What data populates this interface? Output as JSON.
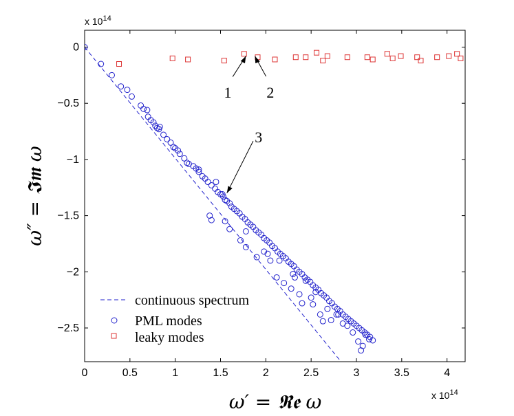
{
  "chart_data": {
    "type": "scatter",
    "title": "",
    "xlabel": "ω′ = 𝕽𝖊 ω",
    "ylabel": "ω″ = 𝕴𝖒 ω",
    "x_multiplier_label": "x 10",
    "x_multiplier_exp": "14",
    "y_multiplier_label": "x 10",
    "y_multiplier_exp": "14",
    "xlim": [
      0,
      4.2
    ],
    "ylim": [
      -2.8,
      0.15
    ],
    "xticks": [
      0,
      0.5,
      1,
      1.5,
      2,
      2.5,
      3,
      3.5,
      4
    ],
    "xtick_labels": [
      "0",
      "0.5",
      "1",
      "1.5",
      "2",
      "2.5",
      "3",
      "3.5",
      "4"
    ],
    "yticks": [
      0,
      -0.5,
      -1,
      -1.5,
      -2,
      -2.5
    ],
    "ytick_labels": [
      "0",
      "−0.5",
      "−1",
      "−1.5",
      "−2",
      "−2.5"
    ],
    "grid": false,
    "legend_position": "bottom-left",
    "colors": {
      "pml": "#2222cc",
      "leaky": "#dd3333",
      "continuous": "#2222cc"
    },
    "series": [
      {
        "name": "continuous spectrum",
        "style": "dashed-line",
        "x": [
          0,
          2.83
        ],
        "y": [
          0,
          -2.8
        ]
      },
      {
        "name": "PML modes",
        "style": "circle",
        "x": [
          0.0,
          0.18,
          0.3,
          0.4,
          0.47,
          0.52,
          0.62,
          0.65,
          0.7,
          0.73,
          0.76,
          0.78,
          0.8,
          0.82,
          0.87,
          0.91,
          0.95,
          0.98,
          1.0,
          1.03,
          1.05,
          1.1,
          1.13,
          1.15,
          1.2,
          1.23,
          1.26,
          1.3,
          1.33,
          1.36,
          1.4,
          1.44,
          1.47,
          1.5,
          1.53,
          1.55,
          1.57,
          1.6,
          1.62,
          1.65,
          1.68,
          1.71,
          1.74,
          1.77,
          1.8,
          1.83,
          1.86,
          1.89,
          1.92,
          1.95,
          1.98,
          2.01,
          2.04,
          2.07,
          2.1,
          2.13,
          2.16,
          2.19,
          2.22,
          2.25,
          2.28,
          2.31,
          2.34,
          2.37,
          2.4,
          2.43,
          2.46,
          2.49,
          2.52,
          2.55,
          2.58,
          2.61,
          2.64,
          2.67,
          2.7,
          2.73,
          2.76,
          2.79,
          2.82,
          2.85,
          2.88,
          2.91,
          2.94,
          2.97,
          3.0,
          3.03,
          3.06,
          3.09,
          3.12,
          3.15,
          3.18,
          1.38,
          1.4,
          1.55,
          1.6,
          1.72,
          1.78,
          1.9,
          2.05,
          2.12,
          2.2,
          2.28,
          2.37,
          2.4,
          2.52,
          2.6,
          2.63,
          2.72,
          2.85,
          2.9,
          2.96,
          3.02,
          3.05,
          3.07,
          1.26,
          1.45,
          1.98,
          2.15,
          2.32,
          2.44,
          2.55,
          2.68,
          2.8,
          3.1,
          0.69,
          0.83,
          1.52,
          1.78,
          2.02,
          2.3,
          2.5,
          2.78,
          3.14
        ],
        "y": [
          0.0,
          -0.15,
          -0.25,
          -0.35,
          -0.38,
          -0.44,
          -0.52,
          -0.55,
          -0.62,
          -0.65,
          -0.67,
          -0.7,
          -0.72,
          -0.73,
          -0.78,
          -0.82,
          -0.85,
          -0.89,
          -0.9,
          -0.92,
          -0.95,
          -0.99,
          -1.03,
          -1.04,
          -1.06,
          -1.08,
          -1.11,
          -1.15,
          -1.17,
          -1.2,
          -1.23,
          -1.26,
          -1.29,
          -1.31,
          -1.33,
          -1.36,
          -1.37,
          -1.39,
          -1.42,
          -1.44,
          -1.46,
          -1.48,
          -1.51,
          -1.53,
          -1.56,
          -1.58,
          -1.6,
          -1.63,
          -1.65,
          -1.67,
          -1.7,
          -1.72,
          -1.74,
          -1.77,
          -1.79,
          -1.82,
          -1.84,
          -1.86,
          -1.88,
          -1.91,
          -1.93,
          -1.95,
          -1.98,
          -2.0,
          -2.02,
          -2.05,
          -2.07,
          -2.09,
          -2.12,
          -2.14,
          -2.16,
          -2.19,
          -2.21,
          -2.23,
          -2.26,
          -2.28,
          -2.31,
          -2.33,
          -2.35,
          -2.38,
          -2.4,
          -2.42,
          -2.44,
          -2.46,
          -2.48,
          -2.5,
          -2.52,
          -2.54,
          -2.56,
          -2.58,
          -2.61,
          -1.5,
          -1.54,
          -1.55,
          -1.62,
          -1.72,
          -1.78,
          -1.87,
          -1.9,
          -2.05,
          -2.1,
          -2.15,
          -2.2,
          -2.28,
          -2.29,
          -2.38,
          -2.44,
          -2.43,
          -2.46,
          -2.48,
          -2.54,
          -2.62,
          -2.7,
          -2.66,
          -1.09,
          -1.2,
          -1.82,
          -1.9,
          -2.05,
          -2.08,
          -2.18,
          -2.33,
          -2.38,
          -2.56,
          -0.56,
          -0.71,
          -1.31,
          -1.64,
          -1.84,
          -2.02,
          -2.23,
          -2.38,
          -2.6
        ]
      },
      {
        "name": "leaky modes",
        "style": "square",
        "x": [
          0.38,
          0.97,
          1.14,
          1.54,
          1.76,
          1.91,
          2.1,
          2.33,
          2.44,
          2.56,
          2.63,
          2.68,
          2.9,
          3.12,
          3.18,
          3.34,
          3.4,
          3.49,
          3.67,
          3.71,
          3.89,
          4.02,
          4.11,
          4.15
        ],
        "y": [
          -0.15,
          -0.1,
          -0.11,
          -0.12,
          -0.06,
          -0.09,
          -0.11,
          -0.09,
          -0.09,
          -0.05,
          -0.12,
          -0.08,
          -0.09,
          -0.09,
          -0.11,
          -0.06,
          -0.1,
          -0.08,
          -0.09,
          -0.12,
          -0.09,
          -0.08,
          -0.06,
          -0.1
        ]
      }
    ],
    "annotations": [
      {
        "text": "1",
        "target": [
          1.78,
          -0.08
        ],
        "text_at": [
          1.58,
          -0.4
        ]
      },
      {
        "text": "2",
        "target": [
          1.88,
          -0.08
        ],
        "text_at": [
          2.05,
          -0.4
        ]
      },
      {
        "text": "3",
        "target": [
          1.57,
          -1.3
        ],
        "text_at": [
          1.92,
          -0.8
        ]
      }
    ]
  }
}
